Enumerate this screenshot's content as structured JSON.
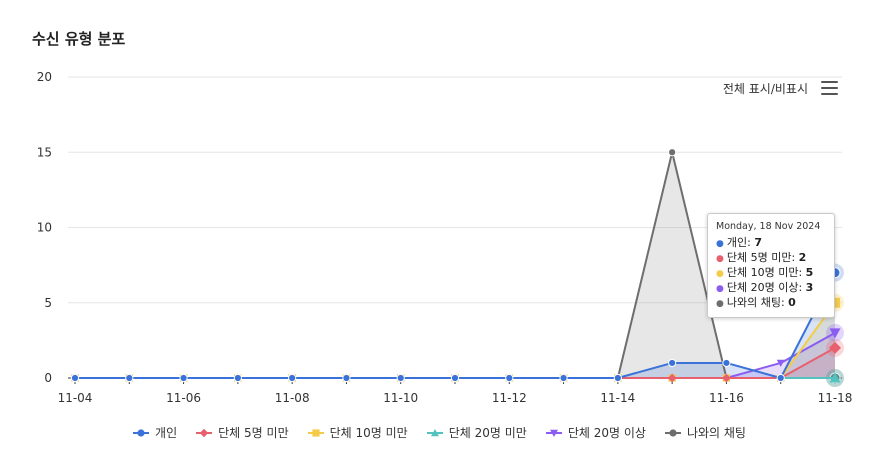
{
  "title": "수신 유형 분포",
  "toggle_label": "전체 표시/비표시",
  "chart_data": {
    "type": "line",
    "x": [
      "11-04",
      "11-05",
      "11-06",
      "11-07",
      "11-08",
      "11-09",
      "11-10",
      "11-11",
      "11-12",
      "11-13",
      "11-14",
      "11-15",
      "11-16",
      "11-17",
      "11-18"
    ],
    "x_tick_labels": [
      "11-04",
      "11-06",
      "11-08",
      "11-10",
      "11-12",
      "11-14",
      "11-16",
      "11-18"
    ],
    "ylim": [
      0,
      20
    ],
    "y_ticks": [
      0,
      5,
      10,
      15,
      20
    ],
    "grid": true,
    "legend_position": "bottom",
    "series": [
      {
        "name": "개인",
        "color": "#3b72d9",
        "marker": "circle",
        "values": [
          0,
          0,
          0,
          0,
          0,
          0,
          0,
          0,
          0,
          0,
          0,
          1,
          1,
          0,
          7
        ]
      },
      {
        "name": "단체 5명 미만",
        "color": "#e8606d",
        "marker": "diamond",
        "values": [
          0,
          0,
          0,
          0,
          0,
          0,
          0,
          0,
          0,
          0,
          0,
          0,
          0,
          0,
          2
        ]
      },
      {
        "name": "단체 10명 미만",
        "color": "#f5cc4a",
        "marker": "square",
        "values": [
          0,
          0,
          0,
          0,
          0,
          0,
          0,
          0,
          0,
          0,
          0,
          0,
          0,
          0,
          5
        ]
      },
      {
        "name": "단체 20명 미만",
        "color": "#54c2bf",
        "marker": "triangle",
        "values": [
          0,
          0,
          0,
          0,
          0,
          0,
          0,
          0,
          0,
          0,
          0,
          0,
          0,
          0,
          0
        ]
      },
      {
        "name": "단체 20명 이상",
        "color": "#8a5cf0",
        "marker": "triangle-down",
        "values": [
          0,
          0,
          0,
          0,
          0,
          0,
          0,
          0,
          0,
          0,
          0,
          0,
          0,
          1,
          3
        ]
      },
      {
        "name": "나와의 채팅",
        "color": "#6e6e6e",
        "marker": "circle",
        "values": [
          0,
          0,
          0,
          0,
          0,
          0,
          0,
          0,
          0,
          0,
          0,
          15,
          0,
          0,
          0
        ]
      }
    ]
  },
  "tooltip": {
    "date": "Monday, 18 Nov 2024",
    "rows": [
      {
        "label": "개인: ",
        "value": "7",
        "color": "#3b72d9"
      },
      {
        "label": "단체 5명 미만: ",
        "value": "2",
        "color": "#e8606d"
      },
      {
        "label": "단체 10명 미만: ",
        "value": "5",
        "color": "#f5cc4a"
      },
      {
        "label": "단체 20명 이상: ",
        "value": "3",
        "color": "#8a5cf0"
      },
      {
        "label": "나와의 채팅: ",
        "value": "0",
        "color": "#6e6e6e"
      }
    ]
  }
}
